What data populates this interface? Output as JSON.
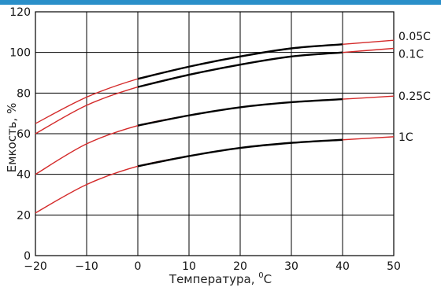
{
  "chart_data": {
    "type": "line",
    "title": "",
    "xlabel": "Температура, ",
    "xlabel_unit": "C",
    "xlabel_sup": "0",
    "ylabel": "Емкость, %",
    "xlim": [
      -20,
      50
    ],
    "ylim": [
      0,
      120
    ],
    "x_ticks": [
      -20,
      -10,
      0,
      10,
      20,
      30,
      40,
      50
    ],
    "x_tick_labels": [
      "−20",
      "−10",
      "0",
      "10",
      "20",
      "30",
      "40",
      "50"
    ],
    "y_ticks": [
      0,
      20,
      40,
      60,
      80,
      100,
      120
    ],
    "y_tick_labels": [
      "0",
      "20",
      "40",
      "60",
      "80",
      "100",
      "120"
    ],
    "grid": true,
    "colors": {
      "measured": "#000000",
      "extrapolated": "#d42a2a",
      "accent": "#2a8fc9"
    },
    "series": [
      {
        "name": "0.05C",
        "x": [
          -20,
          -10,
          0,
          10,
          20,
          30,
          40,
          50
        ],
        "values": [
          65,
          78,
          87,
          93,
          98,
          102,
          104,
          106
        ],
        "measured_range": [
          0,
          40
        ]
      },
      {
        "name": "0.1C",
        "x": [
          -20,
          -10,
          0,
          10,
          20,
          30,
          40,
          50
        ],
        "values": [
          60,
          74,
          83,
          89,
          94,
          98,
          100,
          102
        ],
        "measured_range": [
          0,
          40
        ]
      },
      {
        "name": "0.25C",
        "x": [
          -20,
          -10,
          0,
          10,
          20,
          30,
          40,
          50
        ],
        "values": [
          40,
          55,
          64,
          69,
          73,
          75.5,
          77,
          78.5
        ],
        "measured_range": [
          0,
          40
        ]
      },
      {
        "name": "1C",
        "x": [
          -20,
          -10,
          0,
          10,
          20,
          30,
          40,
          50
        ],
        "values": [
          21,
          35,
          44,
          49,
          53,
          55.5,
          57,
          58.5
        ],
        "measured_range": [
          0,
          40
        ]
      }
    ]
  }
}
